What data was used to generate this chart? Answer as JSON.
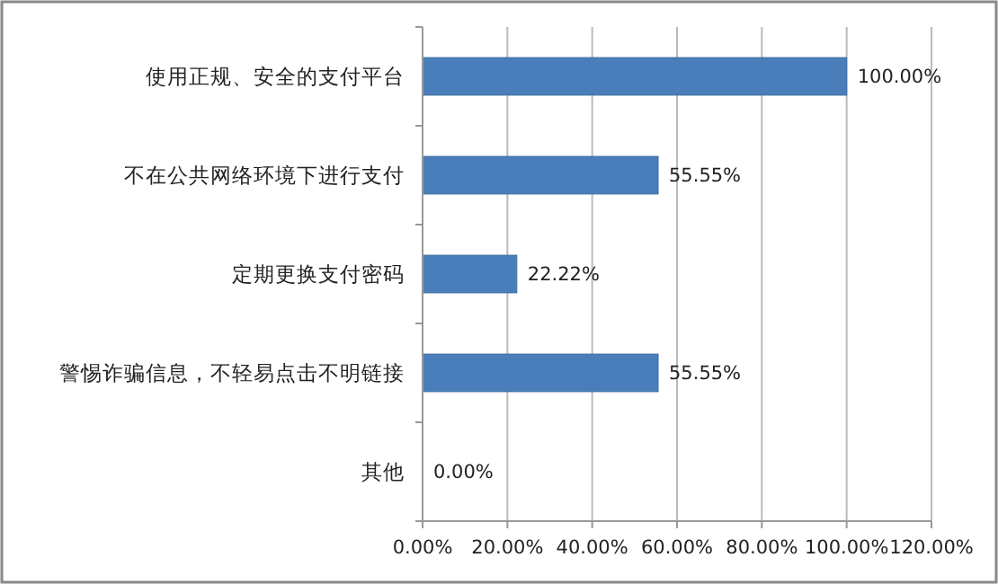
{
  "chart_data": {
    "type": "bar",
    "orientation": "horizontal",
    "categories": [
      "使用正规、安全的支付平台",
      "不在公共网络环境下进行支付",
      "定期更换支付密码",
      "警惕诈骗信息，不轻易点击不明链接",
      "其他"
    ],
    "values": [
      100,
      55.55,
      22.22,
      55.55,
      0
    ],
    "value_labels": [
      "100.00%",
      "55.55%",
      "22.22%",
      "55.55%",
      "0.00%"
    ],
    "color": "#4a7ebb",
    "xlim": [
      0,
      120
    ],
    "xticks": [
      {
        "value": 0,
        "label": "0.00%"
      },
      {
        "value": 20,
        "label": "20.00%"
      },
      {
        "value": 40,
        "label": "40.00%"
      },
      {
        "value": 60,
        "label": "60.00%"
      },
      {
        "value": 80,
        "label": "80.00%"
      },
      {
        "value": 100,
        "label": "100.00%"
      },
      {
        "value": 120,
        "label": "120.00%"
      }
    ],
    "grid": "x"
  }
}
